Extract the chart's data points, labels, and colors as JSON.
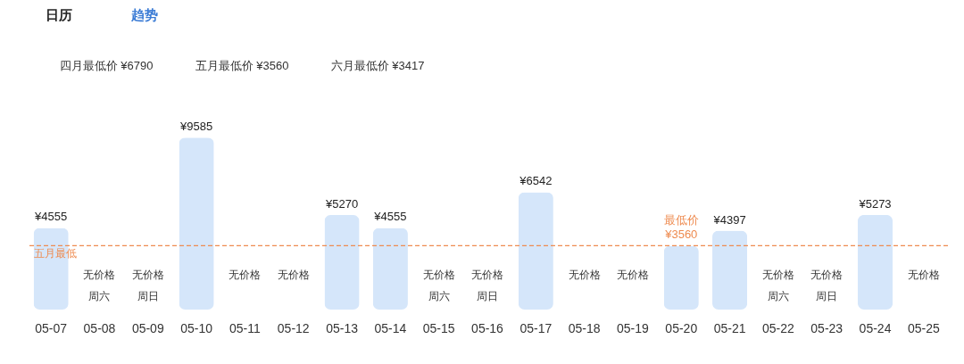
{
  "chart_data": {
    "type": "bar",
    "categories": [
      "05-07",
      "05-08",
      "05-09",
      "05-10",
      "05-11",
      "05-12",
      "05-13",
      "05-14",
      "05-15",
      "05-16",
      "05-17",
      "05-18",
      "05-19",
      "05-20",
      "05-21",
      "05-22",
      "05-23",
      "05-24",
      "05-25"
    ],
    "values": [
      4555,
      null,
      null,
      9585,
      null,
      null,
      5270,
      4555,
      null,
      null,
      6542,
      null,
      null,
      3560,
      4397,
      null,
      null,
      5273,
      null
    ],
    "value_labels": [
      "¥4555",
      "无价格",
      "无价格",
      "¥9585",
      "无价格",
      "无价格",
      "¥5270",
      "¥4555",
      "无价格",
      "无价格",
      "¥6542",
      "无价格",
      "无价格",
      "最低价\n¥3560",
      "¥4397",
      "无价格",
      "无价格",
      "¥5273",
      "无价格"
    ],
    "color": "#d5e6fa",
    "ref_lines": [
      {
        "axis": "y",
        "value": 3560,
        "label": "五月最低",
        "color": "#ee8b50",
        "line_style": "dashed"
      }
    ],
    "annotations": [
      "日历",
      "趋势",
      "四月最低价 ¥6790",
      "五月最低价 ¥3560",
      "六月最低价 ¥3417",
      "周六",
      "周日",
      "周六",
      "周日",
      "周六",
      "周日"
    ]
  }
}
